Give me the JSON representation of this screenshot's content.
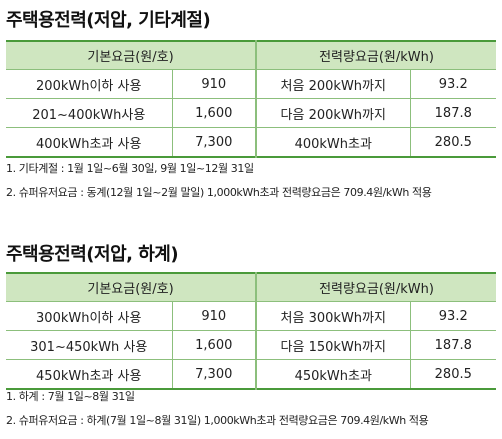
{
  "sections": [
    {
      "title": "주택용전력(저압, 기타계절)",
      "headers": {
        "basic": "기본요금(원/호)",
        "energy": "전력량요금(원/kWh)"
      },
      "rows": [
        {
          "basic_desc": "200kWh이하 사용",
          "basic_val": "910",
          "energy_desc": "처음 200kWh까지",
          "energy_val": "93.2"
        },
        {
          "basic_desc": "201~400kWh사용",
          "basic_val": "1,600",
          "energy_desc": "다음 200kWh까지",
          "energy_val": "187.8"
        },
        {
          "basic_desc": "400kWh초과 사용",
          "basic_val": "7,300",
          "energy_desc": "400kWh초과",
          "energy_val": "280.5"
        }
      ],
      "notes": [
        "1. 기타계절 : 1월 1일~6월 30일, 9월 1일~12월 31일",
        "2. 슈퍼유저요금 : 동계(12월 1일~2월 말일) 1,000kWh초과 전력량요금은 709.4원/kWh 적용"
      ]
    },
    {
      "title": "주택용전력(저압, 하계)",
      "headers": {
        "basic": "기본요금(원/호)",
        "energy": "전력량요금(원/kWh)"
      },
      "rows": [
        {
          "basic_desc": "300kWh이하 사용",
          "basic_val": "910",
          "energy_desc": "처음 300kWh까지",
          "energy_val": "93.2"
        },
        {
          "basic_desc": "301~450kWh 사용",
          "basic_val": "1,600",
          "energy_desc": "다음 150kWh까지",
          "energy_val": "187.8"
        },
        {
          "basic_desc": "450kWh초과 사용",
          "basic_val": "7,300",
          "energy_desc": "450kWh초과",
          "energy_val": "280.5"
        }
      ],
      "notes": [
        "1. 하계 : 7월 1일~8월 31일",
        "2. 슈퍼유저요금 : 하계(7월 1일~8월 31일) 1,000kWh초과 전력량요금은 709.4원/kWh 적용"
      ]
    }
  ],
  "colors": {
    "header_bg": "#cfe6c0",
    "rule": "#4a9a3a",
    "grid": "#8cbf7c"
  }
}
